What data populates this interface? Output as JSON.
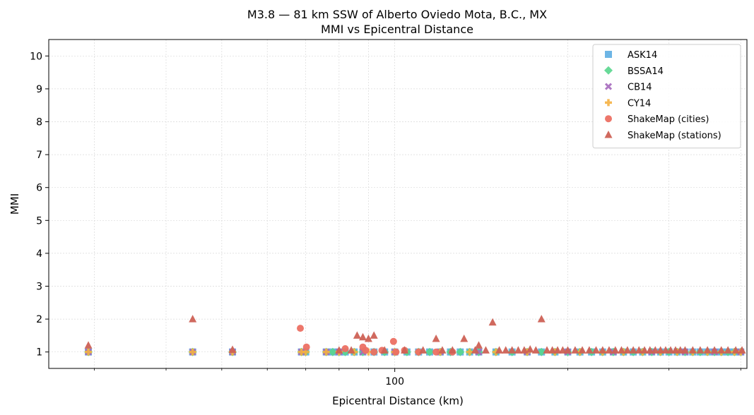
{
  "chart_data": {
    "type": "scatter",
    "title": "M3.8 — 81 km SSW of Alberto Oviedo Mota, B.C., MX",
    "subtitle": "MMI vs Epicentral Distance",
    "xlabel": "Epicentral Distance (km)",
    "ylabel": "MMI",
    "xscale": "log",
    "xlim": [
      25,
      410
    ],
    "ylim": [
      0.5,
      10.5
    ],
    "xticks_major": [
      100
    ],
    "xticks_major_labels": [
      "100"
    ],
    "xticks_minor": [
      30,
      40,
      50,
      60,
      70,
      80,
      90,
      200,
      300,
      400
    ],
    "yticks": [
      1,
      2,
      3,
      4,
      5,
      6,
      7,
      8,
      9,
      10
    ],
    "grid": true,
    "legend_position": "top-right",
    "series": [
      {
        "name": "ASK14",
        "marker": "square",
        "color": "#5dade2",
        "x": [
          29.3,
          44.5,
          52.2,
          68.8,
          70,
          76,
          78,
          80,
          82,
          85,
          88,
          92,
          96,
          100,
          105,
          110,
          115,
          120,
          125,
          130,
          135,
          140,
          150,
          160,
          170,
          180,
          190,
          200,
          210,
          220,
          230,
          240,
          250,
          260,
          270,
          280,
          290,
          300,
          310,
          320,
          330,
          340,
          350,
          360,
          370,
          380,
          390,
          400
        ],
        "y": [
          1,
          1,
          1,
          1,
          1,
          1,
          1,
          1,
          1,
          1,
          1,
          1,
          1,
          1,
          1,
          1,
          1,
          1,
          1,
          1,
          1,
          1,
          1,
          1,
          1,
          1,
          1,
          1,
          1,
          1,
          1,
          1,
          1,
          1,
          1,
          1,
          1,
          1,
          1,
          1,
          1,
          1,
          1,
          1,
          1,
          1,
          1,
          1
        ]
      },
      {
        "name": "BSSA14",
        "marker": "diamond",
        "color": "#58d68d",
        "x": [
          29.3,
          44.5,
          52.2,
          68.8,
          70,
          76,
          78,
          80,
          82,
          85,
          88,
          92,
          96,
          100,
          105,
          110,
          115,
          120,
          125,
          130,
          135,
          140,
          150,
          160,
          170,
          180,
          190,
          200,
          210,
          220,
          230,
          240,
          250,
          260,
          270,
          280,
          290,
          300,
          310,
          320,
          330,
          340,
          350,
          360,
          370,
          380,
          390,
          400
        ],
        "y": [
          1,
          1,
          1,
          1,
          1,
          1,
          1,
          1,
          1,
          1,
          1,
          1,
          1,
          1,
          1,
          1,
          1,
          1,
          1,
          1,
          1,
          1,
          1,
          1,
          1,
          1,
          1,
          1,
          1,
          1,
          1,
          1,
          1,
          1,
          1,
          1,
          1,
          1,
          1,
          1,
          1,
          1,
          1,
          1,
          1,
          1,
          1,
          1
        ]
      },
      {
        "name": "CB14",
        "marker": "x",
        "color": "#a569bd",
        "x": [
          29.3,
          44.5,
          52.2,
          68.8,
          76,
          80,
          88,
          100,
          120,
          140,
          170,
          200,
          240,
          280,
          320,
          360,
          400
        ],
        "y": [
          1,
          1,
          1,
          1,
          1,
          1,
          1,
          1,
          1,
          1,
          1,
          1,
          1,
          1,
          1,
          1,
          1
        ]
      },
      {
        "name": "CY14",
        "marker": "plus",
        "color": "#f5b041",
        "x": [
          29.3,
          44.5,
          52.2,
          68.8,
          70,
          76,
          80,
          85,
          90,
          100,
          110,
          120,
          135,
          150,
          170,
          190,
          210,
          230,
          250,
          270,
          290,
          310,
          330,
          350,
          370,
          390,
          400
        ],
        "y": [
          1,
          1,
          1,
          1,
          1,
          1,
          1,
          1,
          1,
          1,
          1,
          1,
          1,
          1,
          1,
          1,
          1,
          1,
          1,
          1,
          1,
          1,
          1,
          1,
          1,
          1,
          1
        ]
      },
      {
        "name": "ShakeMap (cities)",
        "marker": "circle",
        "color": "#ec7063",
        "x": [
          68.5,
          70.2,
          82,
          88,
          89,
          92,
          95,
          99.5,
          100.5,
          104,
          110,
          118,
          126
        ],
        "y": [
          1.72,
          1.15,
          1.1,
          1.15,
          1.05,
          1.0,
          1.05,
          1.32,
          1.0,
          1.05,
          1.0,
          1.0,
          1.0
        ]
      },
      {
        "name": "ShakeMap (stations)",
        "marker": "triangle",
        "color": "#cd6155",
        "x": [
          29.3,
          44.5,
          52.2,
          86,
          88,
          90,
          92,
          80,
          84,
          96,
          104,
          112,
          118,
          121,
          126,
          132,
          138,
          140,
          144,
          148,
          152,
          156,
          160,
          164,
          168,
          172,
          176,
          180,
          184,
          188,
          192,
          196,
          200,
          206,
          212,
          218,
          224,
          230,
          236,
          242,
          248,
          254,
          260,
          266,
          272,
          278,
          284,
          290,
          296,
          302,
          308,
          314,
          320,
          330,
          340,
          350,
          360,
          370,
          380,
          392,
          402,
          414,
          420,
          430
        ],
        "y": [
          1.2,
          2.0,
          1.07,
          1.5,
          1.45,
          1.4,
          1.5,
          1.05,
          1.05,
          1.05,
          1.05,
          1.05,
          1.4,
          1.05,
          1.05,
          1.4,
          1.05,
          1.2,
          1.05,
          1.9,
          1.05,
          1.05,
          1.05,
          1.05,
          1.05,
          1.08,
          1.05,
          2.0,
          1.05,
          1.05,
          1.05,
          1.05,
          1.05,
          1.05,
          1.05,
          1.05,
          1.05,
          1.05,
          1.05,
          1.05,
          1.05,
          1.05,
          1.05,
          1.05,
          1.05,
          1.05,
          1.05,
          1.05,
          1.05,
          1.05,
          1.05,
          1.05,
          1.05,
          1.05,
          1.05,
          1.05,
          1.05,
          1.05,
          1.05,
          1.05,
          1.05,
          1.05,
          1.05,
          1.05
        ]
      }
    ]
  }
}
